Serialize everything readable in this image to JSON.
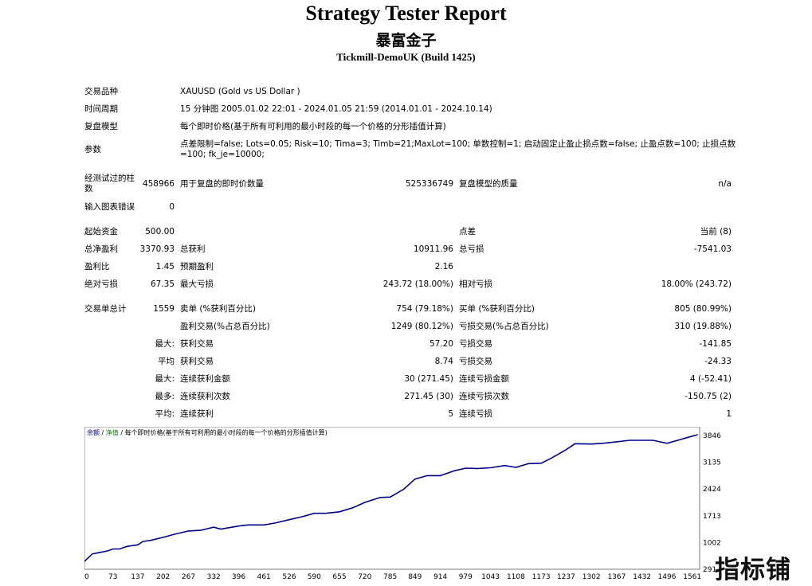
{
  "header": {
    "title": "Strategy Tester Report",
    "subtitle": "暴富金子",
    "build": "Tickmill-DemoUK (Build 1425)"
  },
  "info": {
    "symbol_label": "交易品种",
    "symbol_value": "XAUUSD (Gold vs US Dollar )",
    "period_label": "时间周期",
    "period_value": "15 分钟图 2005.01.02 22:01 - 2024.01.05 21:59 (2014.01.01 - 2024.10.14)",
    "model_label": "复盘模型",
    "model_value": "每个即时价格(基于所有可利用的最小时段的每一个价格的分形插值计算)",
    "params_label": "参数",
    "params_value": "点差限制=false; Lots=0.05; Risk=10; Tima=3; Timb=21;MaxLot=100; 单数控制=1; 启动固定止盈止损点数=false; 止盈点数=100; 止损点数=100; fk_je=10000;"
  },
  "bars": {
    "bars_label": "经测试过的柱数",
    "bars_value": "458966",
    "ticks_label": "用于复盘的即时价数量",
    "ticks_value": "525336749",
    "quality_label": "复盘模型的质量",
    "quality_value": "n/a",
    "errors_label": "输入图表错误",
    "errors_value": "0"
  },
  "results": {
    "deposit_label": "起始资金",
    "deposit_value": "500.00",
    "spread_label": "点差",
    "spread_value": "当前 (8)",
    "net_label": "总净盈利",
    "net_value": "3370.93",
    "gross_profit_label": "总获利",
    "gross_profit_value": "10911.96",
    "gross_loss_label": "总亏损",
    "gross_loss_value": "-7541.03",
    "pf_label": "盈利比",
    "pf_value": "1.45",
    "expected_label": "预期盈利",
    "expected_value": "2.16",
    "abs_dd_label": "绝对亏损",
    "abs_dd_value": "67.35",
    "max_dd_label": "最大亏损",
    "max_dd_value": "243.72 (18.00%)",
    "rel_dd_label": "相对亏损",
    "rel_dd_value": "18.00% (243.72)"
  },
  "trades": {
    "total_label": "交易单总计",
    "total_value": "1559",
    "short_label": "卖单 (%获利百分比)",
    "short_value": "754 (79.18%)",
    "long_label": "买单 (%获利百分比)",
    "long_value": "805 (80.99%)",
    "profit_trades_label": "盈利交易(%占总百分比)",
    "profit_trades_value": "1249 (80.12%)",
    "loss_trades_label": "亏损交易(%占总百分比)",
    "loss_trades_value": "310 (19.88%)",
    "largest_label": "最大:",
    "largest_profit_label": "获利交易",
    "largest_profit_value": "57.20",
    "largest_loss_label": "亏损交易",
    "largest_loss_value": "-141.85",
    "average_label": "平均",
    "average_profit_label": "获利交易",
    "average_profit_value": "8.74",
    "average_loss_label": "亏损交易",
    "average_loss_value": "-24.33",
    "max_label": "最大:",
    "max_cons_wins_label": "连续获利金额",
    "max_cons_wins_value": "30 (271.45)",
    "max_cons_losses_label": "连续亏损金额",
    "max_cons_losses_value": "4 (-52.41)",
    "maximal_label": "最多:",
    "maximal_cons_profit_label": "连续获利次数",
    "maximal_cons_profit_value": "271.45 (30)",
    "maximal_cons_loss_label": "连续亏损次数",
    "maximal_cons_loss_value": "-150.75 (2)",
    "avg_label": "平均:",
    "avg_cons_wins_label": "连续获利",
    "avg_cons_wins_value": "5",
    "avg_cons_losses_label": "连续亏损",
    "avg_cons_losses_value": "1"
  },
  "chart_data": {
    "type": "line",
    "legend": {
      "balance": "余额",
      "sep1": " / ",
      "equity": "净值",
      "sep2": " / ",
      "model": "每个即时价格(基于所有可利用的最小时段的每一个价格的分形插值计算)"
    },
    "x_ticks": [
      0,
      73,
      137,
      202,
      267,
      332,
      396,
      461,
      526,
      590,
      655,
      720,
      785,
      849,
      914,
      979,
      1043,
      1108,
      1173,
      1237,
      1302,
      1367,
      1432,
      1496,
      1561
    ],
    "y_ticks": [
      291,
      1002,
      1713,
      2424,
      3135,
      3846
    ],
    "xlim": [
      0,
      1580
    ],
    "ylim": [
      291,
      4080
    ],
    "series": [
      {
        "color": "#00008b",
        "x": [
          0,
          20,
          40,
          60,
          73,
          90,
          110,
          137,
          150,
          170,
          202,
          230,
          267,
          300,
          332,
          350,
          396,
          420,
          461,
          490,
          526,
          560,
          590,
          620,
          655,
          690,
          720,
          760,
          785,
          820,
          849,
          880,
          914,
          950,
          979,
          1010,
          1043,
          1080,
          1108,
          1140,
          1173,
          1200,
          1237,
          1260,
          1302,
          1330,
          1367,
          1400,
          1432,
          1460,
          1496,
          1530,
          1561,
          1575
        ],
        "y": [
          500,
          700,
          740,
          780,
          830,
          830,
          900,
          940,
          1030,
          1060,
          1140,
          1220,
          1310,
          1330,
          1410,
          1360,
          1440,
          1470,
          1470,
          1520,
          1610,
          1690,
          1780,
          1780,
          1820,
          1930,
          2070,
          2200,
          2210,
          2420,
          2690,
          2780,
          2780,
          2910,
          2980,
          2970,
          2990,
          3050,
          3000,
          3100,
          3110,
          3250,
          3470,
          3630,
          3620,
          3640,
          3680,
          3720,
          3720,
          3720,
          3640,
          3740,
          3830,
          3870
        ]
      }
    ]
  },
  "watermark": "指标铺"
}
